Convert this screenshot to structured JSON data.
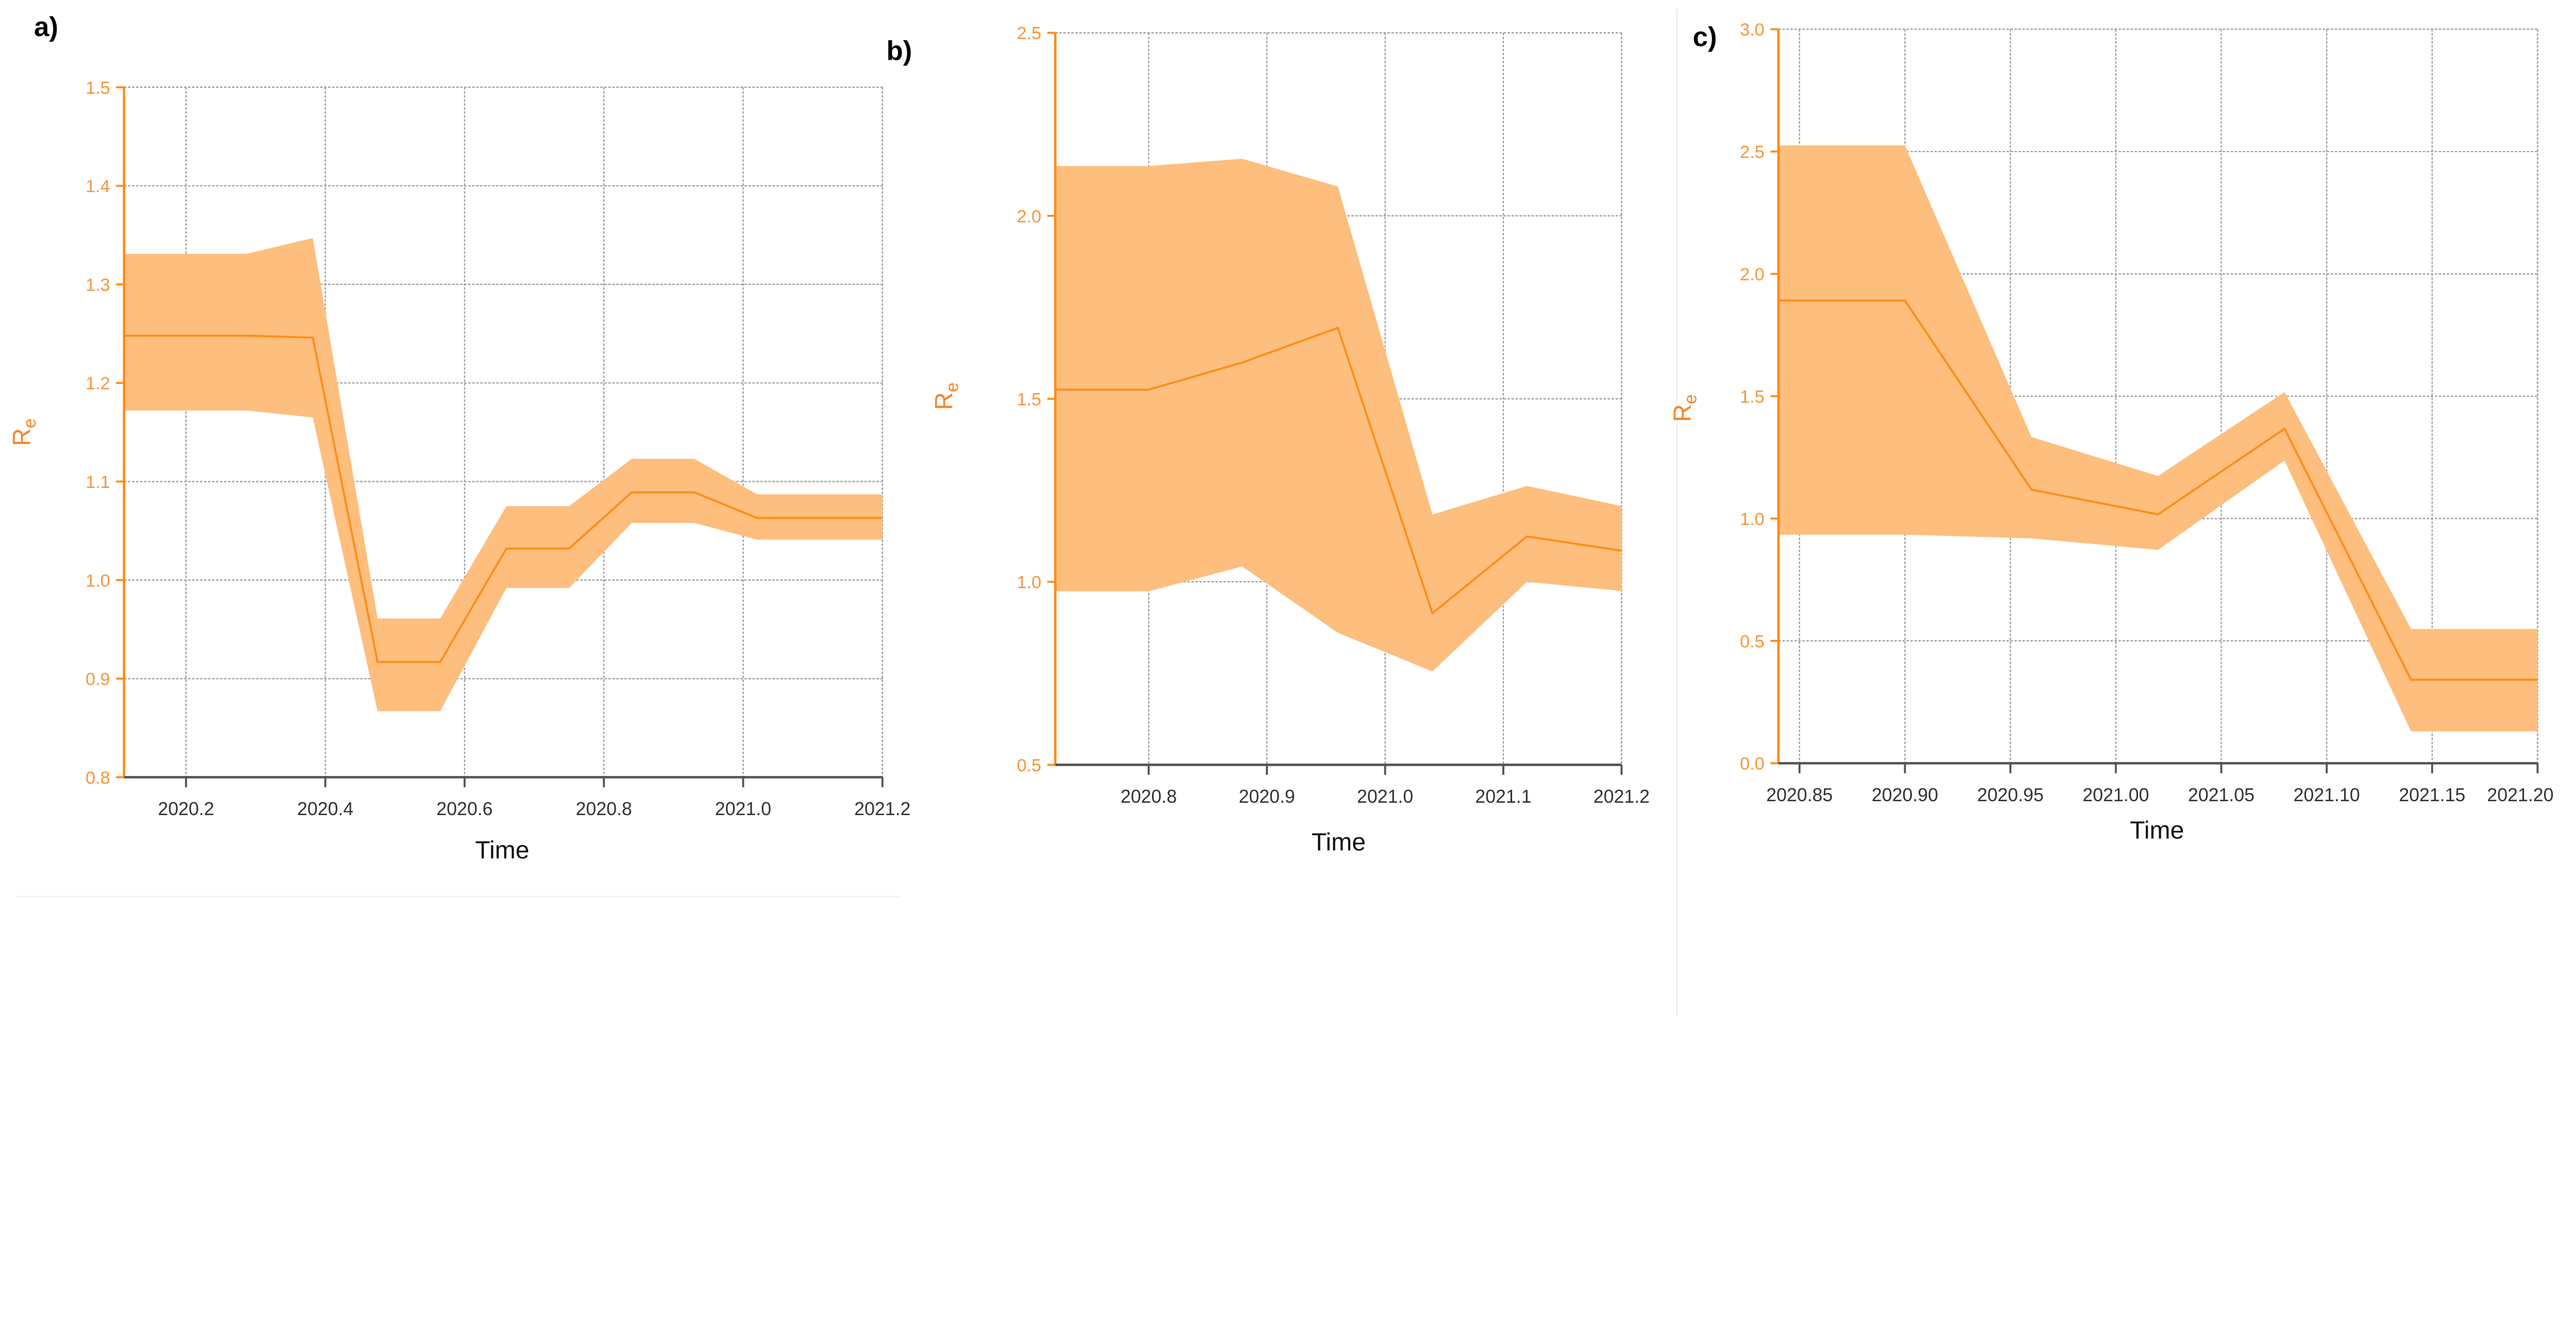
{
  "colors": {
    "band": "#fdbe7e",
    "line": "#ff8c1a",
    "axis": "#ff8c1a",
    "grid": "#9a9a9a",
    "x_axis": "#555555"
  },
  "chart_data": [
    {
      "type": "area",
      "panel_label": "a)",
      "xlabel": "Time",
      "ylabel": "R",
      "ylabel_sub": "e",
      "xlim": [
        2020.111,
        2021.2
      ],
      "ylim": [
        0.8,
        1.5
      ],
      "xticks": [
        2020.2,
        2020.4,
        2020.6,
        2020.8,
        2021.0,
        2021.2
      ],
      "xtick_labels": [
        "2020.2",
        "2020.4",
        "2020.6",
        "2020.8",
        "2021.0",
        "2021.2"
      ],
      "yticks": [
        0.8,
        0.9,
        1.0,
        1.1,
        1.2,
        1.3,
        1.4,
        1.5
      ],
      "ytick_labels": [
        "0.8",
        "0.9",
        "1.0",
        "1.1",
        "1.2",
        "1.3",
        "1.4",
        "1.5"
      ],
      "grid": true,
      "x": [
        2020.111,
        2020.287,
        2020.382,
        2020.475,
        2020.565,
        2020.66,
        2020.75,
        2020.84,
        2020.93,
        2021.02,
        2021.2
      ],
      "mean": [
        1.248,
        1.248,
        1.246,
        0.917,
        0.917,
        1.032,
        1.032,
        1.089,
        1.089,
        1.063,
        1.063
      ],
      "upper": [
        1.331,
        1.331,
        1.347,
        0.961,
        0.961,
        1.075,
        1.075,
        1.123,
        1.123,
        1.087,
        1.087
      ],
      "lower": [
        1.172,
        1.172,
        1.165,
        0.867,
        0.867,
        0.992,
        0.992,
        1.058,
        1.058,
        1.041,
        1.041
      ]
    },
    {
      "type": "area",
      "panel_label": "b)",
      "xlabel": "Time",
      "ylabel": "R",
      "ylabel_sub": "e",
      "xlim": [
        2020.721,
        2021.2
      ],
      "ylim": [
        0.5,
        2.5
      ],
      "xticks": [
        2020.8,
        2020.9,
        2021.0,
        2021.1,
        2021.2
      ],
      "xtick_labels": [
        "2020.8",
        "2020.9",
        "2021.0",
        "2021.1",
        "2021.2"
      ],
      "yticks": [
        0.5,
        1.0,
        1.5,
        2.0,
        2.5
      ],
      "ytick_labels": [
        "0.5",
        "1.0",
        "1.5",
        "2.0",
        "2.5"
      ],
      "grid": true,
      "x": [
        2020.721,
        2020.8,
        2020.879,
        2020.96,
        2021.04,
        2021.12,
        2021.2
      ],
      "mean": [
        1.525,
        1.525,
        1.599,
        1.694,
        0.914,
        1.124,
        1.085
      ],
      "upper": [
        2.136,
        2.136,
        2.156,
        2.08,
        1.184,
        1.262,
        1.207
      ],
      "lower": [
        0.974,
        0.974,
        1.042,
        0.861,
        0.755,
        1.0,
        0.975
      ]
    },
    {
      "type": "area",
      "panel_label": "c)",
      "xlabel": "Time",
      "ylabel": "R",
      "ylabel_sub": "e",
      "xlim": [
        2020.84,
        2021.2
      ],
      "ylim": [
        0.0,
        3.0
      ],
      "xticks": [
        2020.85,
        2020.9,
        2020.95,
        2021.0,
        2021.05,
        2021.1,
        2021.15,
        2021.2
      ],
      "xtick_labels": [
        "2020.85",
        "2020.90",
        "2020.95",
        "2021.00",
        "2021.05",
        "2021.10",
        "2021.15",
        "2021.20"
      ],
      "yticks": [
        0.0,
        0.5,
        1.0,
        1.5,
        2.0,
        2.5,
        3.0
      ],
      "ytick_labels": [
        "0.0",
        "0.5",
        "1.0",
        "1.5",
        "2.0",
        "2.5",
        "3.0"
      ],
      "grid": true,
      "x": [
        2020.84,
        2020.9,
        2020.96,
        2021.02,
        2021.08,
        2021.14,
        2021.2
      ],
      "mean": [
        1.891,
        1.891,
        1.118,
        1.017,
        1.367,
        0.341,
        0.341
      ],
      "upper": [
        2.525,
        2.525,
        1.333,
        1.174,
        1.517,
        0.549,
        0.549
      ],
      "lower": [
        0.934,
        0.934,
        0.919,
        0.872,
        1.237,
        0.13,
        0.13
      ]
    }
  ]
}
